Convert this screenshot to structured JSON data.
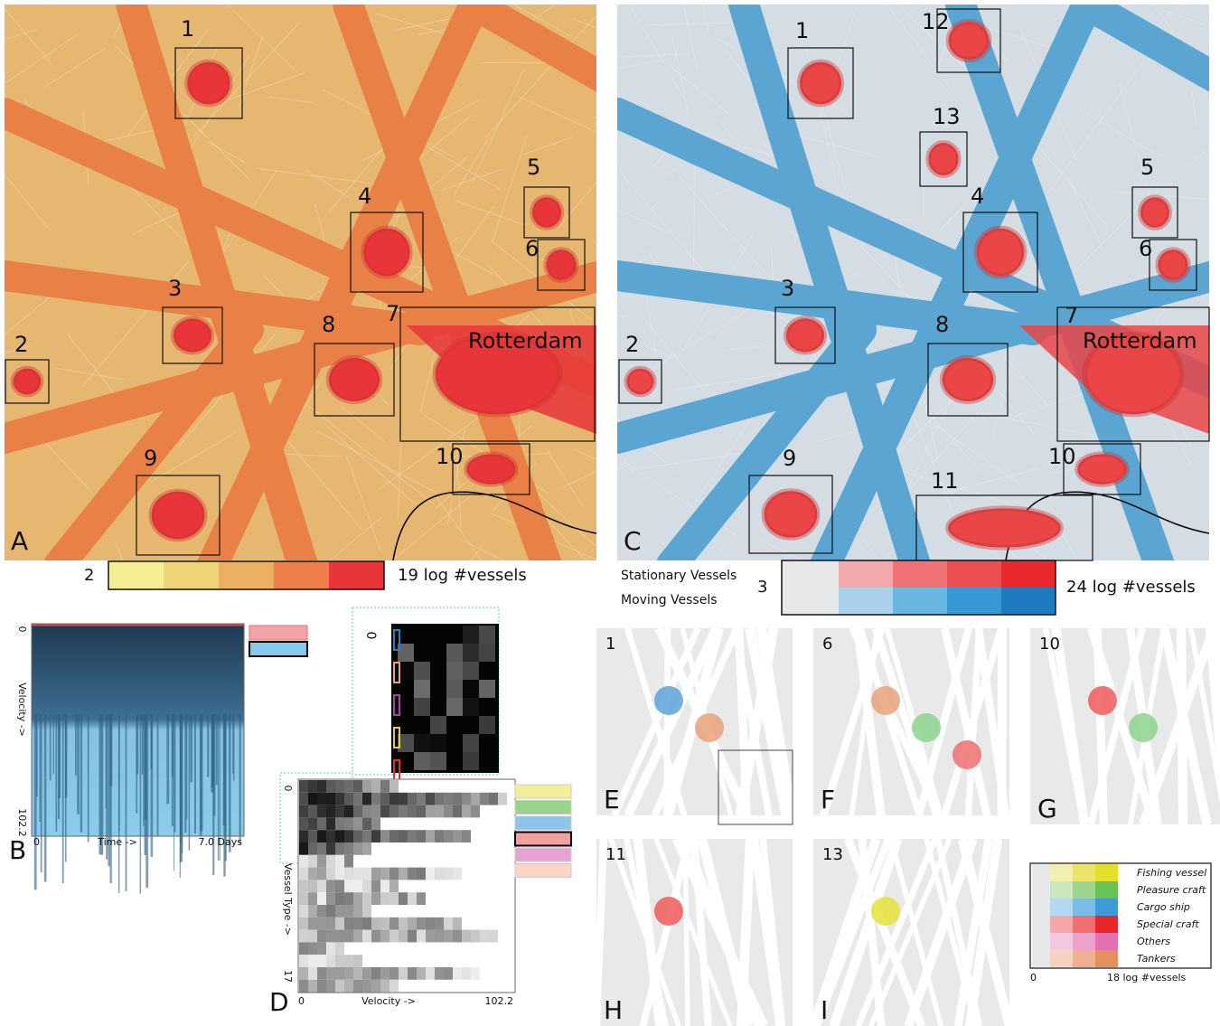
{
  "panel_a": {
    "letter": "A",
    "boxes": [
      "1",
      "2",
      "3",
      "4",
      "5",
      "6",
      "7",
      "8",
      "9",
      "10"
    ],
    "place": "Rotterdam",
    "legend": {
      "min": "2",
      "max": "19 log #vessels"
    }
  },
  "panel_c": {
    "letter": "C",
    "boxes": [
      "1",
      "12",
      "13",
      "5",
      "4",
      "6",
      "3",
      "8",
      "7",
      "2",
      "10",
      "9",
      "11"
    ],
    "place": "Rotterdam",
    "legend": {
      "stationary": "Stationary Vessels",
      "moving": "Moving Vessels",
      "min": "3",
      "max": "24 log #vessels"
    }
  },
  "panel_b": {
    "letter": "B",
    "y_start": "0",
    "y_label": "Velocity ->",
    "y_end": "102.2",
    "x_start": "0",
    "x_label": "Time ->",
    "x_end": "7.0 Days"
  },
  "panel_d": {
    "letter": "D",
    "inset_start": "0",
    "y_start": "0",
    "y_label": "Vessel Type ->",
    "y_end": "17",
    "x_start": "0",
    "x_label": "Velocity ->",
    "x_end": "102.2"
  },
  "details": [
    {
      "letter": "E",
      "region": "1"
    },
    {
      "letter": "F",
      "region": "6"
    },
    {
      "letter": "G",
      "region": "10"
    },
    {
      "letter": "H",
      "region": "11"
    },
    {
      "letter": "I",
      "region": "13"
    }
  ],
  "type_legend": {
    "types": [
      "Fishing vessel",
      "Pleasure craft",
      "Cargo ship",
      "Special craft",
      "Others",
      "Tankers"
    ],
    "min": "0",
    "max": "18 log #vessels"
  }
}
